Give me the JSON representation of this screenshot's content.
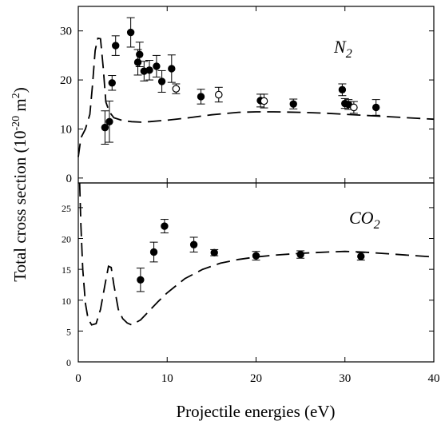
{
  "xlabel": "Projectile energies (eV)",
  "ylabel": "Total cross section (10",
  "ylabel_exp1": "-20",
  "ylabel_mid": " m",
  "ylabel_exp2": "2",
  "ylabel_end": ")",
  "chart_data": [
    {
      "type": "scatter",
      "panel": "top",
      "label_main": "N",
      "label_sub": "2",
      "xlim": [
        0,
        40
      ],
      "ylim": [
        -1,
        35
      ],
      "x_ticks": [
        0,
        10,
        20,
        30,
        40
      ],
      "y_ticks": [
        0,
        10,
        20,
        30
      ],
      "grid": false,
      "series": [
        {
          "style": "filled-circle",
          "points": [
            {
              "x": 3.0,
              "y": 10.3,
              "err": 3.4
            },
            {
              "x": 3.5,
              "y": 11.5,
              "err": 4.2
            },
            {
              "x": 3.8,
              "y": 19.4,
              "err": 1.5
            },
            {
              "x": 4.2,
              "y": 27.0,
              "err": 2.0
            },
            {
              "x": 5.9,
              "y": 29.7,
              "err": 3.0
            },
            {
              "x": 6.7,
              "y": 23.6,
              "err": 2.6
            },
            {
              "x": 6.9,
              "y": 25.2,
              "err": 2.5
            },
            {
              "x": 7.4,
              "y": 21.8,
              "err": 2.0
            },
            {
              "x": 8.0,
              "y": 22.0,
              "err": 2.0
            },
            {
              "x": 8.8,
              "y": 22.8,
              "err": 2.2
            },
            {
              "x": 9.4,
              "y": 19.7,
              "err": 2.2
            },
            {
              "x": 10.5,
              "y": 22.3,
              "err": 2.8
            },
            {
              "x": 13.8,
              "y": 16.6,
              "err": 1.5
            },
            {
              "x": 20.5,
              "y": 15.8,
              "err": 1.3
            },
            {
              "x": 24.2,
              "y": 15.1,
              "err": 1.0
            },
            {
              "x": 29.7,
              "y": 18.0,
              "err": 1.2
            },
            {
              "x": 30.0,
              "y": 15.2,
              "err": 1.0
            },
            {
              "x": 30.4,
              "y": 15.0,
              "err": 1.0
            },
            {
              "x": 33.5,
              "y": 14.4,
              "err": 1.6
            }
          ]
        },
        {
          "style": "open-circle",
          "points": [
            {
              "x": 11.0,
              "y": 18.2,
              "err": 1.0
            },
            {
              "x": 15.8,
              "y": 17.0,
              "err": 1.5
            },
            {
              "x": 20.9,
              "y": 15.7,
              "err": 1.4
            },
            {
              "x": 31.0,
              "y": 14.4,
              "err": 1.2
            }
          ]
        },
        {
          "style": "dashed-line",
          "x": [
            0.0,
            0.3,
            0.8,
            1.3,
            1.6,
            1.9,
            2.2,
            2.5,
            2.8,
            3.1,
            3.5,
            4.0,
            5.0,
            6.0,
            7.0,
            8.0,
            10.0,
            12.0,
            15.0,
            18.0,
            20.0,
            22.0,
            25.0,
            28.0,
            30.0,
            32.0,
            35.0,
            38.0,
            40.0
          ],
          "y": [
            4.3,
            8.2,
            10.0,
            13.0,
            19.0,
            26.0,
            28.5,
            28.4,
            22.5,
            15.5,
            13.5,
            12.3,
            11.7,
            11.5,
            11.4,
            11.5,
            11.8,
            12.2,
            12.9,
            13.4,
            13.5,
            13.5,
            13.4,
            13.2,
            13.0,
            12.8,
            12.5,
            12.2,
            12.0
          ]
        }
      ]
    },
    {
      "type": "scatter",
      "panel": "bottom",
      "label_main": "CO",
      "label_sub": "2",
      "xlim": [
        0,
        40
      ],
      "ylim": [
        0,
        29
      ],
      "x_ticks": [
        0,
        10,
        20,
        30,
        40
      ],
      "y_ticks": [
        0,
        5,
        10,
        15,
        20,
        25
      ],
      "grid": false,
      "series": [
        {
          "style": "filled-circle",
          "points": [
            {
              "x": 7.0,
              "y": 13.3,
              "err": 1.9
            },
            {
              "x": 8.5,
              "y": 17.8,
              "err": 1.6
            },
            {
              "x": 9.7,
              "y": 22.0,
              "err": 1.1
            },
            {
              "x": 13.0,
              "y": 19.0,
              "err": 1.2
            },
            {
              "x": 15.3,
              "y": 17.7,
              "err": 0.5
            },
            {
              "x": 20.0,
              "y": 17.2,
              "err": 0.7
            },
            {
              "x": 25.0,
              "y": 17.4,
              "err": 0.6
            },
            {
              "x": 31.8,
              "y": 17.1,
              "err": 0.6
            }
          ]
        },
        {
          "style": "dashed-line",
          "x": [
            0.15,
            0.3,
            0.5,
            0.8,
            1.1,
            1.5,
            2.0,
            2.5,
            3.0,
            3.4,
            3.7,
            4.0,
            4.5,
            5.0,
            5.5,
            6.0,
            7.0,
            8.0,
            9.0,
            10.0,
            12.0,
            14.0,
            16.0,
            18.0,
            20.0,
            22.0,
            25.0,
            28.0,
            30.0,
            32.0,
            35.0,
            38.0,
            40.0
          ],
          "y": [
            29.0,
            22.0,
            15.0,
            9.5,
            7.0,
            6.0,
            6.2,
            8.5,
            12.5,
            15.5,
            15.3,
            12.5,
            8.5,
            7.0,
            6.3,
            6.0,
            6.8,
            8.3,
            9.8,
            11.2,
            13.5,
            15.0,
            16.0,
            16.6,
            17.0,
            17.3,
            17.6,
            17.8,
            17.9,
            17.8,
            17.5,
            17.2,
            17.0
          ]
        }
      ]
    }
  ]
}
